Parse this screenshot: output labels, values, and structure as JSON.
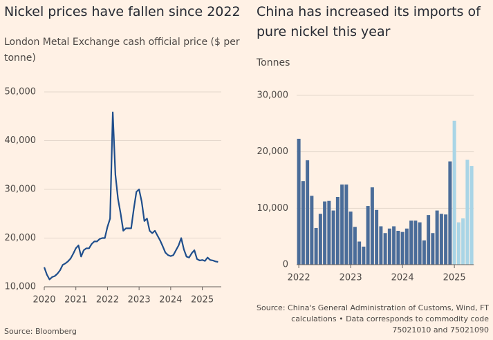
{
  "chart_data": [
    {
      "type": "line",
      "title": "Nickel prices have fallen since 2022",
      "subtitle": "London Metal Exchange cash official price ($ per tonne)",
      "source": "Source: Bloomberg",
      "x": [
        2020,
        2020.083,
        2020.167,
        2020.25,
        2020.333,
        2020.417,
        2020.5,
        2020.583,
        2020.667,
        2020.75,
        2020.833,
        2020.917,
        2021,
        2021.083,
        2021.167,
        2021.25,
        2021.333,
        2021.417,
        2021.5,
        2021.583,
        2021.667,
        2021.75,
        2021.833,
        2021.917,
        2022,
        2022.083,
        2022.167,
        2022.25,
        2022.333,
        2022.417,
        2022.5,
        2022.583,
        2022.667,
        2022.75,
        2022.833,
        2022.917,
        2023,
        2023.083,
        2023.167,
        2023.25,
        2023.333,
        2023.417,
        2023.5,
        2023.583,
        2023.667,
        2023.75,
        2023.833,
        2023.917,
        2024,
        2024.083,
        2024.167,
        2024.25,
        2024.333,
        2024.417,
        2024.5,
        2024.583,
        2024.667,
        2024.75,
        2024.833,
        2024.917,
        2025,
        2025.083,
        2025.167,
        2025.25,
        2025.333,
        2025.417,
        2025.5
      ],
      "series": [
        {
          "name": "Nickel",
          "color": "#1f4e8c",
          "values": [
            14000,
            12500,
            11500,
            12000,
            12200,
            12700,
            13400,
            14500,
            14800,
            15200,
            15800,
            16800,
            17900,
            18500,
            16200,
            17500,
            17900,
            17900,
            18800,
            19300,
            19300,
            19800,
            20000,
            20000,
            22300,
            24000,
            45800,
            33000,
            28000,
            25000,
            21500,
            22000,
            22000,
            22000,
            26000,
            29500,
            30000,
            27500,
            23500,
            24000,
            21500,
            21000,
            21500,
            20500,
            19500,
            18300,
            17000,
            16500,
            16300,
            16500,
            17500,
            18500,
            20000,
            17700,
            16200,
            16000,
            16900,
            17500,
            15700,
            15400,
            15500,
            15300,
            16000,
            15500,
            15400,
            15200,
            15100
          ]
        }
      ],
      "xlim": [
        2020,
        2025.6
      ],
      "xticks": [
        2020,
        2021,
        2022,
        2023,
        2024,
        2025
      ],
      "ylim": [
        10000,
        50000
      ],
      "yticks": [
        {
          "value": 10000,
          "label": "10,000"
        },
        {
          "value": 20000,
          "label": "20,000"
        },
        {
          "value": 30000,
          "label": "30,000"
        },
        {
          "value": 40000,
          "label": "40,000"
        },
        {
          "value": 50000,
          "label": "50,000"
        }
      ],
      "grid": true
    },
    {
      "type": "bar",
      "title": "China has increased its imports of pure nickel this year",
      "subtitle": "Tonnes",
      "source": "Source: China's General Administration of Customs, Wind, FT calculations • Data corresponds to commodity code 75021010 and 75021090",
      "categories": [
        "2022",
        null,
        null,
        null,
        null,
        null,
        null,
        null,
        null,
        null,
        null,
        null,
        "2023",
        null,
        null,
        null,
        null,
        null,
        null,
        null,
        null,
        null,
        null,
        null,
        "2024",
        null,
        null,
        null,
        null,
        null,
        null,
        null,
        null,
        null,
        null,
        null,
        "2025",
        null,
        null,
        null,
        null
      ],
      "values": [
        22300,
        14800,
        18500,
        12200,
        6500,
        9000,
        11200,
        11300,
        9600,
        12000,
        14200,
        14200,
        9400,
        6700,
        4100,
        3200,
        10400,
        13700,
        9700,
        6800,
        5600,
        6400,
        6800,
        6000,
        5800,
        6400,
        7800,
        7800,
        7500,
        4300,
        8800,
        5600,
        9600,
        9000,
        8900,
        18300,
        25500,
        7500,
        8200,
        18600,
        17500
      ],
      "colors": [
        "#4a6c99",
        "#4a6c99",
        "#4a6c99",
        "#4a6c99",
        "#4a6c99",
        "#4a6c99",
        "#4a6c99",
        "#4a6c99",
        "#4a6c99",
        "#4a6c99",
        "#4a6c99",
        "#4a6c99",
        "#4a6c99",
        "#4a6c99",
        "#4a6c99",
        "#4a6c99",
        "#4a6c99",
        "#4a6c99",
        "#4a6c99",
        "#4a6c99",
        "#4a6c99",
        "#4a6c99",
        "#4a6c99",
        "#4a6c99",
        "#4a6c99",
        "#4a6c99",
        "#4a6c99",
        "#4a6c99",
        "#4a6c99",
        "#4a6c99",
        "#4a6c99",
        "#4a6c99",
        "#4a6c99",
        "#4a6c99",
        "#4a6c99",
        "#4a6c99",
        "#a9d5e6",
        "#a9d5e6",
        "#a9d5e6",
        "#a9d5e6",
        "#a9d5e6"
      ],
      "ylim": [
        0,
        30000
      ],
      "yticks": [
        0,
        {
          "value": 10000,
          "label": "10,000"
        },
        {
          "value": 20000,
          "label": "20,000"
        },
        {
          "value": 30000,
          "label": "30,000"
        }
      ],
      "grid": true
    }
  ]
}
